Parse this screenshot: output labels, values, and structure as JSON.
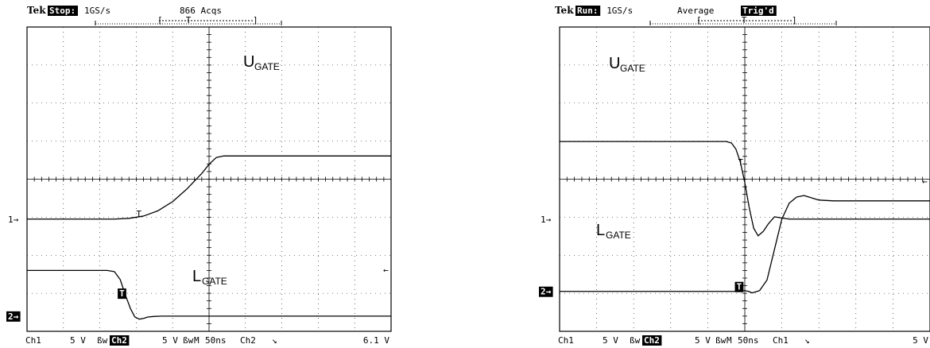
{
  "scopes": [
    {
      "header": {
        "brand": "Tek",
        "state": "Stop:",
        "rate": "1GS/s",
        "extra": "866 Acqs",
        "extra_highlight": false,
        "marker": "T"
      },
      "footer": {
        "ch1": "Ch1",
        "ch1_scale": "5 V",
        "bw1": "ßw",
        "ch2": "Ch2",
        "ch2_scale": "5 V",
        "bw2": "ßw",
        "m": "M",
        "time": "50ns",
        "trig_src": "Ch2",
        "slope": "↘",
        "trig_level": "6.1 V"
      },
      "ch1_marker": "1→",
      "ch2_marker": "2→",
      "trigger_marker": "T",
      "level_arrow": "←",
      "labels": {
        "u_main": "U",
        "u_sub": "GATE",
        "l_main": "L",
        "l_sub": "GATE"
      },
      "chart_data": {
        "type": "line",
        "x_unit": "ns",
        "x_per_div": 50,
        "y_per_div_V": 5,
        "divisions_x": 10,
        "divisions_y": 8,
        "ch1_ground_div": -1.05,
        "ch2_ground_div": -3.6,
        "series": [
          {
            "name": "UGATE",
            "channel": 1,
            "x": [
              -250,
              -130,
              -110,
              -90,
              -70,
              -50,
              -30,
              -10,
              0,
              10,
              20,
              40,
              250
            ],
            "y": [
              0,
              0,
              0.1,
              0.4,
              1.1,
              2.3,
              4.0,
              6.0,
              7.2,
              8.1,
              8.3,
              8.3,
              8.3
            ]
          },
          {
            "name": "LGATE",
            "channel": 2,
            "x": [
              -250,
              -140,
              -130,
              -122,
              -115,
              -108,
              -102,
              -96,
              -90,
              -84,
              -76,
              -66,
              250
            ],
            "y": [
              6.0,
              6.0,
              5.85,
              4.8,
              2.8,
              1.0,
              -0.1,
              -0.4,
              -0.3,
              -0.12,
              -0.05,
              0,
              0
            ]
          }
        ]
      }
    },
    {
      "header": {
        "brand": "Tek",
        "state": "Run:",
        "rate": "1GS/s",
        "extra": "Average",
        "extra_highlight": false,
        "trig_state": "Trig'd",
        "marker": "T"
      },
      "footer": {
        "ch1": "Ch1",
        "ch1_scale": "5 V",
        "bw1": "ßw",
        "ch2": "Ch2",
        "ch2_scale": "5 V",
        "bw2": "ßw",
        "m": "M",
        "time": "50ns",
        "trig_src": "Ch1",
        "slope": "↘",
        "trig_level": "5 V"
      },
      "ch1_marker": "1→",
      "ch2_marker": "2→",
      "trigger_marker": "T",
      "level_arrow": "←",
      "labels": {
        "u_main": "U",
        "u_sub": "GATE",
        "l_main": "L",
        "l_sub": "GATE"
      },
      "chart_data": {
        "type": "line",
        "x_unit": "ns",
        "x_per_div": 50,
        "y_per_div_V": 5,
        "divisions_x": 10,
        "divisions_y": 8,
        "ch1_ground_div": -1.05,
        "ch2_ground_div": -2.95,
        "series": [
          {
            "name": "UGATE",
            "channel": 1,
            "x": [
              -250,
              -25,
              -18,
              -12,
              -6,
              0,
              6,
              12,
              18,
              25,
              32,
              40,
              50,
              60,
              70,
              250
            ],
            "y": [
              10.2,
              10.2,
              10.0,
              9.2,
              7.5,
              4.8,
              1.5,
              -1.2,
              -2.2,
              -1.6,
              -0.6,
              0.3,
              0.15,
              0,
              0,
              0
            ]
          },
          {
            "name": "LGATE",
            "channel": 2,
            "x": [
              -250,
              -5,
              0,
              5,
              10,
              20,
              30,
              40,
              50,
              60,
              70,
              80,
              90,
              100,
              120,
              250
            ],
            "y": [
              0,
              0,
              0.1,
              0,
              -0.2,
              0.1,
              1.5,
              5.5,
              9.5,
              11.6,
              12.4,
              12.6,
              12.3,
              12.0,
              11.9,
              11.9
            ]
          }
        ]
      }
    }
  ]
}
